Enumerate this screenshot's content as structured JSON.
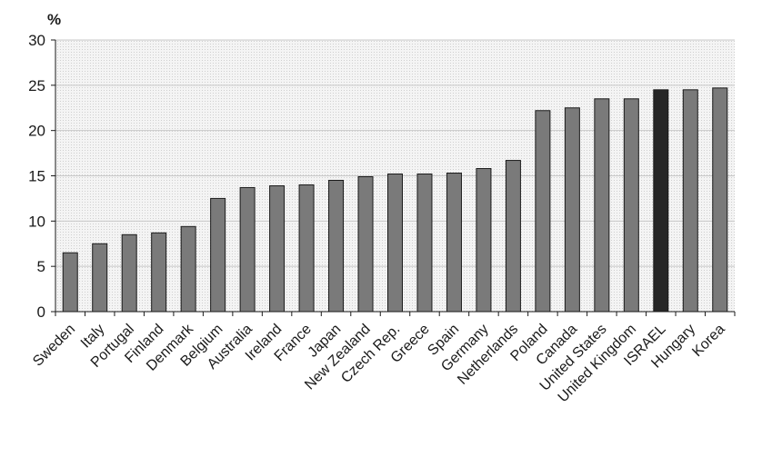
{
  "chart_data": {
    "type": "bar",
    "unit_label": "%",
    "categories": [
      "Sweden",
      "Italy",
      "Portugal",
      "Finland",
      "Denmark",
      "Belgium",
      "Australia",
      "Ireland",
      "France",
      "Japan",
      "New Zealand",
      "Czech Rep.",
      "Greece",
      "Spain",
      "Germany",
      "Netherlands",
      "Poland",
      "Canada",
      "United States",
      "United Kingdom",
      "ISRAEL",
      "Hungary",
      "Korea"
    ],
    "values": [
      6.5,
      7.5,
      8.5,
      8.7,
      9.4,
      12.5,
      13.7,
      13.9,
      14.0,
      14.5,
      14.9,
      15.2,
      15.2,
      15.3,
      15.8,
      16.7,
      22.2,
      22.5,
      23.5,
      23.5,
      24.5,
      24.5,
      24.7
    ],
    "highlight_category": "ISRAEL",
    "ylim": [
      0,
      30
    ],
    "yticks": [
      0,
      5,
      10,
      15,
      20,
      25,
      30
    ],
    "grid": true,
    "legend": "none",
    "colors": {
      "bar": "#7a7a7a",
      "bar_highlight": "#262626",
      "bar_edge": "#1a1a1a",
      "plot_background": "#f2f2f2",
      "gridline": "#c8c8c8",
      "axis": "#1a1a1a"
    }
  }
}
